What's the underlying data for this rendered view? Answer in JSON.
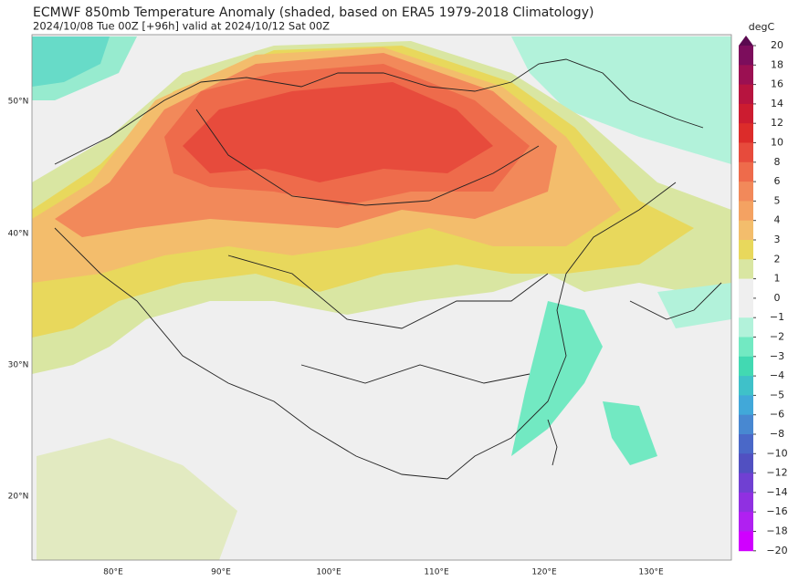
{
  "title": "ECMWF 850mb Temperature Anomaly (shaded, based on ERA5 1979-2018 Climatology)",
  "subtitle": "2024/10/08 Tue 00Z [+96h] valid at 2024/10/12 Sat 00Z",
  "colorbar": {
    "unit": "degC",
    "labels": [
      "20",
      "18",
      "16",
      "14",
      "12",
      "10",
      "8",
      "6",
      "5",
      "4",
      "3",
      "2",
      "1",
      "0",
      "−1",
      "−2",
      "−3",
      "−4",
      "−5",
      "−6",
      "−8",
      "−10",
      "−12",
      "−14",
      "−16",
      "−18",
      "−20"
    ],
    "colors": [
      "#7c0d5c",
      "#9b1052",
      "#b7143f",
      "#cc1c30",
      "#dc2c2a",
      "#e74b3c",
      "#ee6b4b",
      "#f2895a",
      "#f4a262",
      "#f3bd6c",
      "#e8d85c",
      "#d9e6a2",
      "#efefef",
      "#efefef",
      "#b2f2da",
      "#72e9c2",
      "#42d9b2",
      "#3fc1c9",
      "#41a8d9",
      "#4888d1",
      "#4a68c8",
      "#5150c1",
      "#7040d2",
      "#9030e1",
      "#b020f1",
      "#d000ff"
    ],
    "top_color": "#5a0a50"
  },
  "lat_labels": [
    "50°N",
    "40°N",
    "30°N",
    "20°N"
  ],
  "lon_labels": [
    "80°E",
    "90°E",
    "100°E",
    "110°E",
    "120°E",
    "130°E"
  ]
}
